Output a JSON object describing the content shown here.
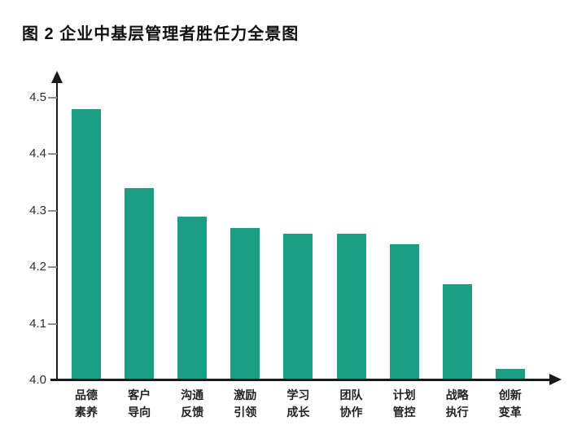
{
  "header": {
    "title": "图 2 企业中基层管理者胜任力全景图"
  },
  "chart_data": {
    "type": "bar",
    "title": "图 2 企业中基层管理者胜任力全景图",
    "categories": [
      "品德素养",
      "客户导向",
      "沟通反馈",
      "激励引领",
      "学习成长",
      "团队协作",
      "计划管控",
      "战略执行",
      "创新变革"
    ],
    "values": [
      4.48,
      4.34,
      4.29,
      4.27,
      4.26,
      4.26,
      4.24,
      4.17,
      4.02
    ],
    "xlabel": "",
    "ylabel": "",
    "ylim": [
      4.0,
      4.5
    ],
    "yticks": [
      "4.0",
      "4.1",
      "4.2",
      "4.3",
      "4.4",
      "4.5"
    ],
    "grid": false,
    "legend": "none",
    "bar_color": "#1b9e84",
    "axis_color": "#1a1a1a",
    "tick_color": "#8f8f8f",
    "title_color": "#111111",
    "background_color": "#ffffff"
  }
}
